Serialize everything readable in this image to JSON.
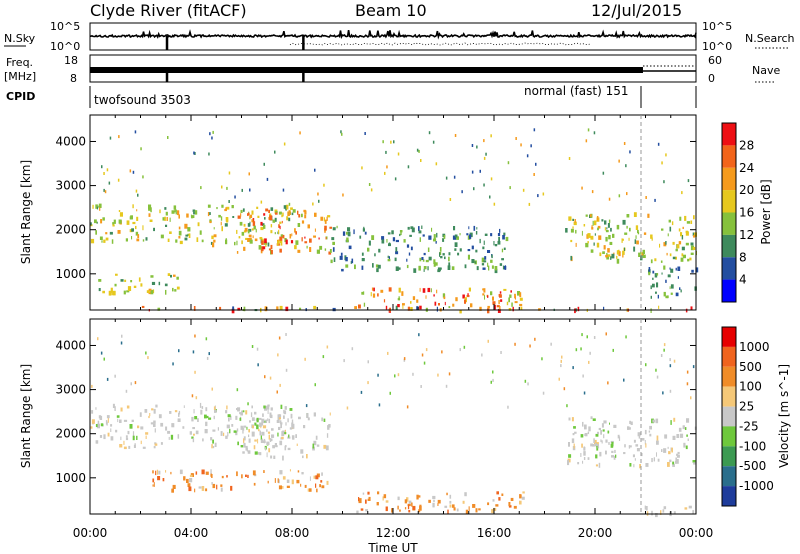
{
  "header": {
    "station": "Clyde River (fitACF)",
    "beam": "Beam 10",
    "date": "12/Jul/2015"
  },
  "side_labels": {
    "n_sky": "N.Sky",
    "freq_line1": "Freq.",
    "freq_line2": "[MHz]",
    "cpid": "CPID",
    "n_search": "N.Search",
    "nave": "Nave",
    "nsky_top": "10^5",
    "nsky_bottom": "10^0",
    "freq_top": "18",
    "freq_bottom": "8",
    "nave_top": "60",
    "nave_bottom": "0",
    "nsearch_top": "10^5",
    "nsearch_bottom": "10^0"
  },
  "cpid_modes": [
    {
      "label": "twofsound 3503",
      "start_hour": 0,
      "end_hour": 21.9
    },
    {
      "label": "normal (fast) 151",
      "start_hour": 21.9,
      "end_hour": 24
    }
  ],
  "chart_data": [
    {
      "type": "heatmap",
      "name": "power",
      "xlabel": "",
      "ylabel": "Slant Range [km]",
      "xlim": [
        0,
        24
      ],
      "ylim": [
        180,
        4600
      ],
      "yticks": [
        "1000",
        "2000",
        "3000",
        "4000"
      ],
      "colorbar": {
        "label": "Power [dB]",
        "ticks": [
          "4",
          "8",
          "12",
          "16",
          "20",
          "24",
          "28"
        ],
        "range": [
          0,
          32
        ],
        "colors": [
          "#0000ff",
          "#234ea0",
          "#3e8a5c",
          "#86c13c",
          "#e6c81e",
          "#f59a1c",
          "#f2641a",
          "#ee0f14"
        ]
      },
      "echo_bands": [
        {
          "t0": 0,
          "t1": 24,
          "r0": 190,
          "r1": 280,
          "level": "mixed-high"
        },
        {
          "t0": 0,
          "t1": 8,
          "r0": 1700,
          "r1": 2600,
          "level": "mid"
        },
        {
          "t0": 0.3,
          "t1": 3.5,
          "r0": 600,
          "r1": 1050,
          "level": "mid"
        },
        {
          "t0": 5.8,
          "t1": 9.5,
          "r0": 1500,
          "r1": 2500,
          "level": "high"
        },
        {
          "t0": 9.5,
          "t1": 16.5,
          "r0": 1100,
          "r1": 2100,
          "level": "low"
        },
        {
          "t0": 10.5,
          "t1": 17.2,
          "r0": 250,
          "r1": 700,
          "level": "high"
        },
        {
          "t0": 18.8,
          "t1": 24,
          "r0": 1300,
          "r1": 2400,
          "level": "mid"
        },
        {
          "t0": 22,
          "t1": 24,
          "r0": 500,
          "r1": 1200,
          "level": "low"
        }
      ]
    },
    {
      "type": "heatmap",
      "name": "velocity",
      "xlabel": "Time UT",
      "ylabel": "Slant Range [km]",
      "xlim": [
        0,
        24
      ],
      "ylim": [
        180,
        4600
      ],
      "xticks": [
        "00:00",
        "04:00",
        "08:00",
        "12:00",
        "16:00",
        "20:00",
        "00:00"
      ],
      "yticks": [
        "1000",
        "2000",
        "3000",
        "4000"
      ],
      "colorbar": {
        "label": "Velocity [m s^-1]",
        "ticks": [
          "1000",
          "500",
          "100",
          "25",
          "-25",
          "-100",
          "-500",
          "-1000"
        ],
        "colors": [
          "#1e3c9b",
          "#2a6e8c",
          "#3c9a52",
          "#6ec83c",
          "#c8c8c8",
          "#f5c878",
          "#f08c28",
          "#f0641e",
          "#e60000"
        ]
      },
      "echo_bands": [
        {
          "t0": 0,
          "t1": 8,
          "r0": 1700,
          "r1": 2700,
          "level": "ground"
        },
        {
          "t0": 5.8,
          "t1": 9.5,
          "r0": 1500,
          "r1": 2500,
          "level": "ground"
        },
        {
          "t0": 2.4,
          "t1": 9.4,
          "r0": 750,
          "r1": 1200,
          "level": "away"
        },
        {
          "t0": 10.5,
          "t1": 17.2,
          "r0": 250,
          "r1": 700,
          "level": "away"
        },
        {
          "t0": 18.8,
          "t1": 24,
          "r0": 1300,
          "r1": 2400,
          "level": "ground"
        },
        {
          "t0": 21.5,
          "t1": 24,
          "r0": 200,
          "r1": 400,
          "level": "ground"
        }
      ]
    }
  ]
}
